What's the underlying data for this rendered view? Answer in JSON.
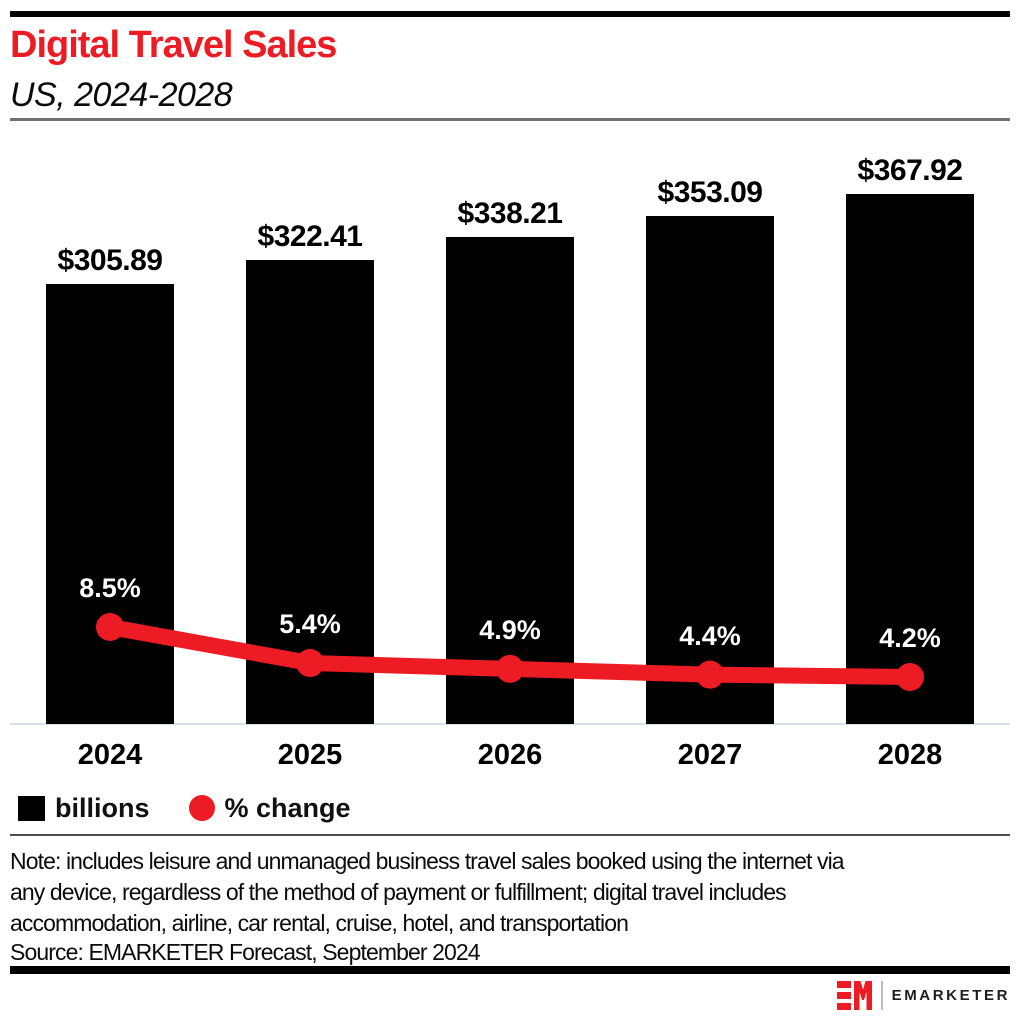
{
  "header": {
    "title": "Digital Travel Sales",
    "subtitle": "US, 2024-2028"
  },
  "chart_data": {
    "type": "bar",
    "title": "Digital Travel Sales",
    "subtitle": "US, 2024-2028",
    "categories": [
      "2024",
      "2025",
      "2026",
      "2027",
      "2028"
    ],
    "series": [
      {
        "name": "billions",
        "type": "bar",
        "unit": "billions of USD",
        "values": [
          305.89,
          322.41,
          338.21,
          353.09,
          367.92
        ],
        "data_labels": [
          "$305.89",
          "$322.41",
          "$338.21",
          "$353.09",
          "$367.92"
        ],
        "color": "#000000"
      },
      {
        "name": "% change",
        "type": "line",
        "unit": "percent",
        "values": [
          8.5,
          5.4,
          4.9,
          4.4,
          4.2
        ],
        "data_labels": [
          "8.5%",
          "5.4%",
          "4.9%",
          "4.4%",
          "4.2%"
        ],
        "color": "#ED1B23"
      }
    ],
    "xlabel": "",
    "ylabel": "",
    "grid": false,
    "legend_position": "bottom-left"
  },
  "legend": {
    "items": [
      {
        "label": "billions",
        "swatch": "black-square"
      },
      {
        "label": "% change",
        "swatch": "red-circle"
      }
    ]
  },
  "footnote": {
    "note_lines": [
      "Note: includes leisure and unmanaged business travel sales booked using the internet via",
      "any device, regardless of the method of payment or fulfillment; digital travel includes",
      "accommodation, airline, car rental, cruise, hotel, and transportation"
    ],
    "source": "Source: EMARKETER Forecast, September 2024"
  },
  "footer": {
    "brand": "EMARKETER",
    "logo_monogram": "EM"
  },
  "colors": {
    "accent_red": "#ED1B23",
    "bar_black": "#000000",
    "baseline_line": "#d9e0ec",
    "subtitle_rule": "#707174",
    "legend_rule": "#4c4d4f",
    "label_white": "#ffffff",
    "text_black": "#111111"
  }
}
